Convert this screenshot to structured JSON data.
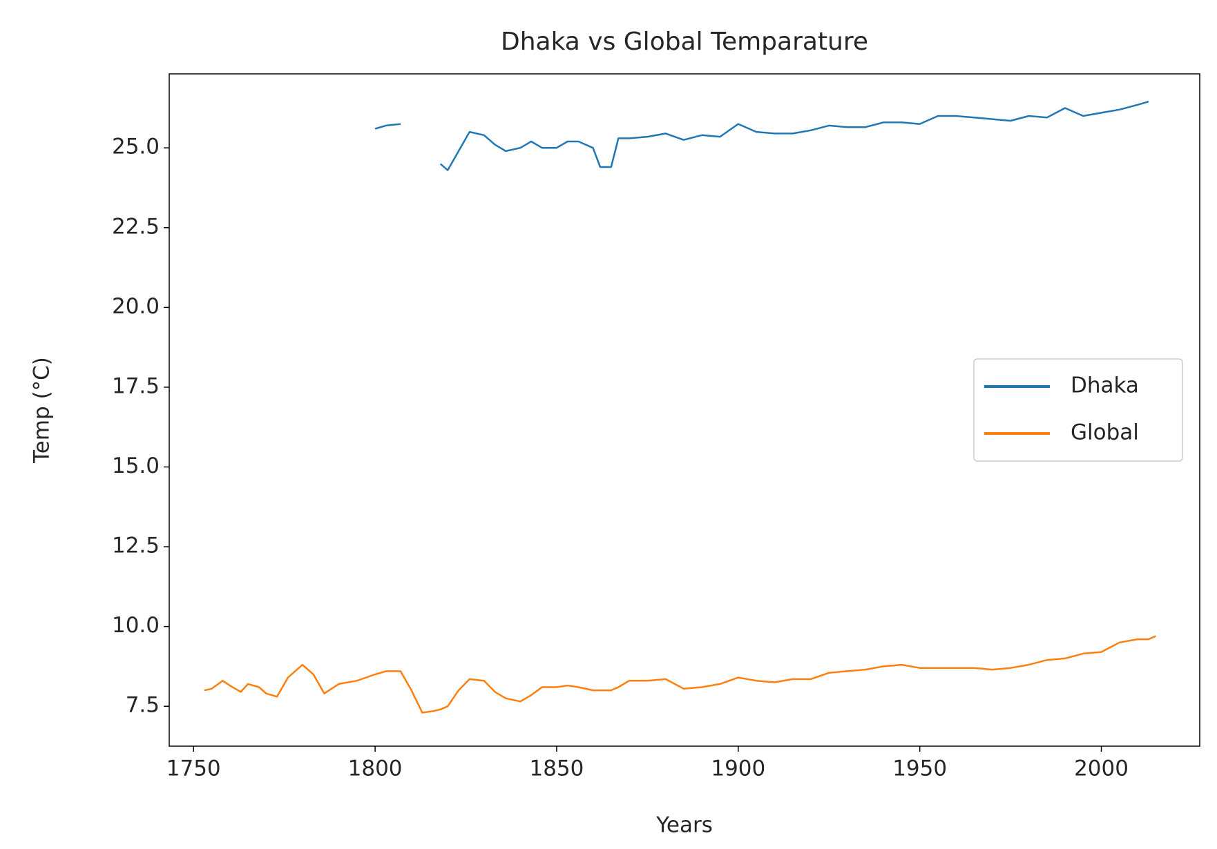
{
  "chart_data": {
    "type": "line",
    "title": "Dhaka vs Global Temparature",
    "x_label": "Years",
    "y_label": "Temp (°C)",
    "x": [
      1753,
      1755,
      1758,
      1760,
      1763,
      1765,
      1768,
      1770,
      1773,
      1776,
      1780,
      1783,
      1786,
      1790,
      1795,
      1800,
      1803,
      1807,
      1810,
      1813,
      1816,
      1818,
      1820,
      1823,
      1826,
      1830,
      1833,
      1836,
      1840,
      1843,
      1846,
      1850,
      1853,
      1856,
      1860,
      1862,
      1865,
      1867,
      1870,
      1875,
      1880,
      1885,
      1890,
      1895,
      1900,
      1905,
      1910,
      1915,
      1920,
      1925,
      1930,
      1935,
      1940,
      1945,
      1950,
      1955,
      1960,
      1965,
      1970,
      1975,
      1980,
      1985,
      1990,
      1995,
      2000,
      2005,
      2010,
      2013,
      2015
    ],
    "series": [
      {
        "name": "Dhaka",
        "color": "#1f77b4",
        "values": [
          null,
          null,
          null,
          null,
          null,
          null,
          null,
          null,
          null,
          null,
          null,
          null,
          null,
          null,
          null,
          25.6,
          25.7,
          25.75,
          null,
          null,
          null,
          24.5,
          24.3,
          24.9,
          25.5,
          25.4,
          25.1,
          24.9,
          25.0,
          25.2,
          25.0,
          25.0,
          25.2,
          25.2,
          25.0,
          24.4,
          24.4,
          25.3,
          25.3,
          25.35,
          25.45,
          25.25,
          25.4,
          25.35,
          25.75,
          25.5,
          25.45,
          25.45,
          25.55,
          25.7,
          25.65,
          25.65,
          25.8,
          25.8,
          25.75,
          26.0,
          26.0,
          25.95,
          25.9,
          25.85,
          26.0,
          25.95,
          26.25,
          26.0,
          26.1,
          26.2,
          26.35,
          26.45,
          null
        ]
      },
      {
        "name": "Global",
        "color": "#ff7f0e",
        "values": [
          8.0,
          8.05,
          8.3,
          8.15,
          7.95,
          8.2,
          8.1,
          7.9,
          7.8,
          8.4,
          8.8,
          8.5,
          7.9,
          8.2,
          8.3,
          8.5,
          8.6,
          8.6,
          8.0,
          7.3,
          7.35,
          7.4,
          7.5,
          8.0,
          8.35,
          8.3,
          7.95,
          7.75,
          7.65,
          7.85,
          8.1,
          8.1,
          8.15,
          8.1,
          8.0,
          8.0,
          8.0,
          8.1,
          8.3,
          8.3,
          8.35,
          8.05,
          8.1,
          8.2,
          8.4,
          8.3,
          8.25,
          8.35,
          8.35,
          8.55,
          8.6,
          8.65,
          8.75,
          8.8,
          8.7,
          8.7,
          8.7,
          8.7,
          8.65,
          8.7,
          8.8,
          8.95,
          9.0,
          9.15,
          9.2,
          9.5,
          9.6,
          9.6,
          9.7
        ]
      }
    ],
    "xlim": [
      1743.3,
      2027.1
    ],
    "xticks": [
      1750,
      1800,
      1850,
      1900,
      1950,
      2000
    ],
    "ylim": [
      6.25,
      27.32
    ],
    "yticks": [
      7.5,
      {
        "value": 10,
        "label": "10.0"
      },
      12.5,
      {
        "value": 15,
        "label": "15.0"
      },
      17.5,
      {
        "value": 20,
        "label": "20.0"
      },
      22.5,
      {
        "value": 25,
        "label": "25.0"
      }
    ],
    "grid": false,
    "legend": "center right"
  }
}
